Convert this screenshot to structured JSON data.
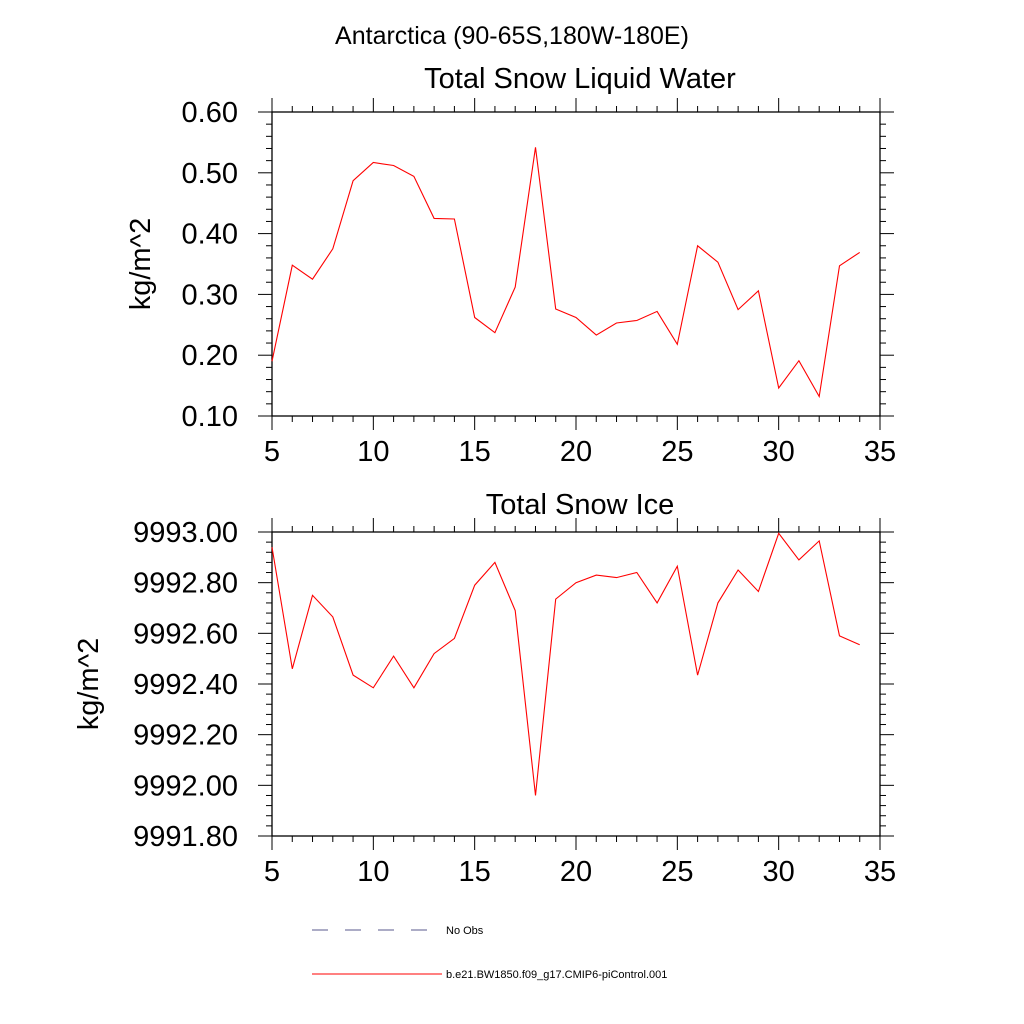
{
  "suptitle": "Antarctica (90-65S,180W-180E)",
  "colors": {
    "model_line": "#ff0000",
    "obs_line": "#5a5a8c",
    "axes": "#000000"
  },
  "chart_data": [
    {
      "type": "line",
      "title": "Total Snow Liquid Water",
      "xlabel": "",
      "ylabel": "kg/m^2",
      "xlim": [
        5,
        35
      ],
      "ylim": [
        0.1,
        0.6
      ],
      "xticks": [
        5,
        10,
        15,
        20,
        25,
        30,
        35
      ],
      "xtick_labels": [
        "5",
        "10",
        "15",
        "20",
        "25",
        "30",
        "35"
      ],
      "yticks": [
        0.1,
        0.2,
        0.3,
        0.4,
        0.5,
        0.6
      ],
      "ytick_labels": [
        "0.10",
        "0.20",
        "0.30",
        "0.40",
        "0.50",
        "0.60"
      ],
      "grid": false,
      "series": [
        {
          "name": "b.e21.BW1850.f09_g17.CMIP6-piControl.001",
          "x": [
            5,
            6,
            7,
            8,
            9,
            10,
            11,
            12,
            13,
            14,
            15,
            16,
            17,
            18,
            19,
            20,
            21,
            22,
            23,
            24,
            25,
            26,
            27,
            28,
            29,
            30,
            31,
            32,
            33,
            34
          ],
          "y": [
            0.19,
            0.348,
            0.325,
            0.375,
            0.487,
            0.517,
            0.512,
            0.494,
            0.425,
            0.424,
            0.262,
            0.237,
            0.312,
            0.542,
            0.276,
            0.262,
            0.233,
            0.253,
            0.257,
            0.272,
            0.218,
            0.38,
            0.353,
            0.275,
            0.306,
            0.146,
            0.191,
            0.132,
            0.347,
            0.369
          ]
        }
      ]
    },
    {
      "type": "line",
      "title": "Total Snow Ice",
      "xlabel": "",
      "ylabel": "kg/m^2",
      "xlim": [
        5,
        35
      ],
      "ylim": [
        9991.8,
        9993.0
      ],
      "xticks": [
        5,
        10,
        15,
        20,
        25,
        30,
        35
      ],
      "xtick_labels": [
        "5",
        "10",
        "15",
        "20",
        "25",
        "30",
        "35"
      ],
      "yticks": [
        9991.8,
        9992.0,
        9992.2,
        9992.4,
        9992.6,
        9992.8,
        9993.0
      ],
      "ytick_labels": [
        "9991.80",
        "9992.00",
        "9992.20",
        "9992.40",
        "9992.60",
        "9992.80",
        "9993.00"
      ],
      "grid": false,
      "series": [
        {
          "name": "b.e21.BW1850.f09_g17.CMIP6-piControl.001",
          "x": [
            5,
            6,
            7,
            8,
            9,
            10,
            11,
            12,
            13,
            14,
            15,
            16,
            17,
            18,
            19,
            20,
            21,
            22,
            23,
            24,
            25,
            26,
            27,
            28,
            29,
            30,
            31,
            32,
            33,
            34
          ],
          "y": [
            9992.94,
            9992.46,
            9992.75,
            9992.665,
            9992.435,
            9992.385,
            9992.51,
            9992.385,
            9992.52,
            9992.58,
            9992.79,
            9992.88,
            9992.69,
            9991.96,
            9992.735,
            9992.8,
            9992.83,
            9992.82,
            9992.84,
            9992.72,
            9992.865,
            9992.435,
            9992.72,
            9992.85,
            9992.765,
            9992.995,
            9992.89,
            9992.965,
            9992.59,
            9992.555
          ]
        }
      ]
    }
  ],
  "legend": {
    "placement": "bottom",
    "entries": [
      {
        "label": "No Obs",
        "style": "dashed",
        "color": "#5a5a8c"
      },
      {
        "label": "b.e21.BW1850.f09_g17.CMIP6-piControl.001",
        "style": "solid",
        "color": "#ff0000"
      }
    ]
  }
}
